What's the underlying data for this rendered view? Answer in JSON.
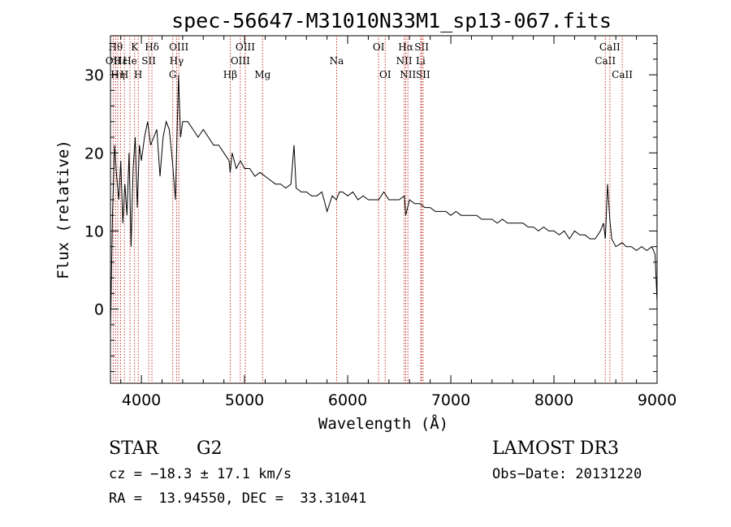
{
  "chart_data": {
    "type": "line",
    "title": "spec-56647-M31010N33M1_sp13-067.fits",
    "xlabel": "Wavelength (Å)",
    "ylabel": "Flux (relative)",
    "xlim": [
      3700,
      9000
    ],
    "ylim": [
      -9.5,
      35
    ],
    "xticks": [
      4000,
      5000,
      6000,
      7000,
      8000,
      9000
    ],
    "xtick_labels": [
      "4000",
      "5000",
      "6000",
      "7000",
      "8000",
      "9000"
    ],
    "yticks": [
      0,
      10,
      20,
      30
    ],
    "ytick_labels": [
      "0",
      "10",
      "20",
      "30"
    ],
    "spectrum_color": "#000000",
    "line_color": "#c0392b",
    "series": [
      {
        "name": "flux",
        "x": [
          3700,
          3720,
          3740,
          3760,
          3780,
          3800,
          3820,
          3840,
          3860,
          3880,
          3900,
          3920,
          3940,
          3960,
          3980,
          4000,
          4030,
          4060,
          4090,
          4120,
          4150,
          4180,
          4210,
          4240,
          4270,
          4300,
          4330,
          4360,
          4380,
          4400,
          4450,
          4500,
          4550,
          4600,
          4650,
          4700,
          4750,
          4800,
          4850,
          4861,
          4880,
          4920,
          4960,
          5000,
          5050,
          5100,
          5150,
          5200,
          5250,
          5300,
          5350,
          5400,
          5450,
          5480,
          5500,
          5550,
          5600,
          5650,
          5700,
          5750,
          5800,
          5850,
          5890,
          5920,
          5950,
          6000,
          6050,
          6100,
          6150,
          6200,
          6250,
          6300,
          6350,
          6400,
          6450,
          6500,
          6550,
          6563,
          6600,
          6650,
          6700,
          6750,
          6800,
          6850,
          6900,
          6950,
          7000,
          7050,
          7100,
          7150,
          7200,
          7250,
          7300,
          7350,
          7400,
          7450,
          7500,
          7550,
          7600,
          7650,
          7700,
          7750,
          7800,
          7850,
          7900,
          7950,
          8000,
          8050,
          8100,
          8150,
          8200,
          8250,
          8300,
          8350,
          8400,
          8450,
          8480,
          8498,
          8520,
          8542,
          8560,
          8600,
          8662,
          8700,
          8750,
          8800,
          8850,
          8900,
          8950,
          8980,
          9000
        ],
        "values": [
          -3,
          12,
          21,
          17,
          14,
          19,
          11,
          16,
          12,
          20,
          8,
          18,
          22,
          13,
          21,
          19,
          22,
          24,
          21,
          22,
          23,
          17,
          22,
          24,
          23,
          19,
          14,
          30,
          22,
          24,
          24,
          23,
          22,
          23,
          22,
          21,
          21,
          20,
          19,
          17.5,
          20,
          18,
          19,
          18,
          18,
          17,
          17.5,
          17,
          16.5,
          16,
          16,
          15.5,
          16,
          21,
          15.5,
          15,
          15,
          14.5,
          14.5,
          15,
          12.5,
          14.5,
          14,
          15,
          15,
          14.5,
          15,
          14,
          14.5,
          14,
          14,
          14,
          15,
          14,
          14,
          14,
          14.5,
          12,
          14,
          13.5,
          13.5,
          13,
          13,
          12.5,
          12.5,
          12.5,
          12,
          12.5,
          12,
          12,
          12,
          12,
          11.5,
          11.5,
          11.5,
          11,
          11.5,
          11,
          11,
          11,
          11,
          10.5,
          10.5,
          10,
          10.5,
          10,
          10,
          9.5,
          10,
          9,
          10,
          9.5,
          9.5,
          9,
          9,
          10,
          11,
          9,
          16,
          11.5,
          9,
          8,
          8.5,
          8,
          8,
          7.5,
          8,
          7.5,
          8,
          7,
          1
        ]
      }
    ],
    "lines": [
      {
        "wl": 3727,
        "label": "OII",
        "row": 1
      },
      {
        "wl": 3750,
        "label": "Hθ",
        "row": 0
      },
      {
        "wl": 3771,
        "label": "Hη",
        "row": 2
      },
      {
        "wl": 3798,
        "label": "Hε",
        "row": 1
      },
      {
        "wl": 3835,
        "label": "H",
        "row": 2
      },
      {
        "wl": 3889,
        "label": "He",
        "row": 1
      },
      {
        "wl": 3934,
        "label": "K",
        "row": 0
      },
      {
        "wl": 3969,
        "label": "H",
        "row": 2
      },
      {
        "wl": 4071,
        "label": "SII",
        "row": 1
      },
      {
        "wl": 4102,
        "label": "Hδ",
        "row": 0
      },
      {
        "wl": 4304,
        "label": "G",
        "row": 2
      },
      {
        "wl": 4341,
        "label": "Hγ",
        "row": 1
      },
      {
        "wl": 4363,
        "label": "OIII",
        "row": 0
      },
      {
        "wl": 4861,
        "label": "Hβ",
        "row": 2
      },
      {
        "wl": 4959,
        "label": "OIII",
        "row": 1
      },
      {
        "wl": 5007,
        "label": "OIII",
        "row": 0
      },
      {
        "wl": 5175,
        "label": "Mg",
        "row": 2
      },
      {
        "wl": 5893,
        "label": "Na",
        "row": 1
      },
      {
        "wl": 6300,
        "label": "OI",
        "row": 0
      },
      {
        "wl": 6364,
        "label": "OI",
        "row": 2
      },
      {
        "wl": 6548,
        "label": "NII",
        "row": 1
      },
      {
        "wl": 6563,
        "label": "Hα",
        "row": 0
      },
      {
        "wl": 6584,
        "label": "NII",
        "row": 2
      },
      {
        "wl": 6708,
        "label": "Li",
        "row": 1
      },
      {
        "wl": 6717,
        "label": "SII",
        "row": 0
      },
      {
        "wl": 6731,
        "label": "SII",
        "row": 2
      },
      {
        "wl": 8498,
        "label": "CaII",
        "row": 1
      },
      {
        "wl": 8542,
        "label": "CaII",
        "row": 0
      },
      {
        "wl": 8662,
        "label": "CaII",
        "row": 2
      }
    ]
  },
  "info": {
    "object_type": "STAR",
    "subclass": "G2",
    "survey": "LAMOST DR3",
    "cz": "cz = −18.3 ± 17.1 km/s",
    "obs_date": "Obs−Date: 20131220",
    "coords": "RA =  13.94550, DEC =  33.31041"
  }
}
